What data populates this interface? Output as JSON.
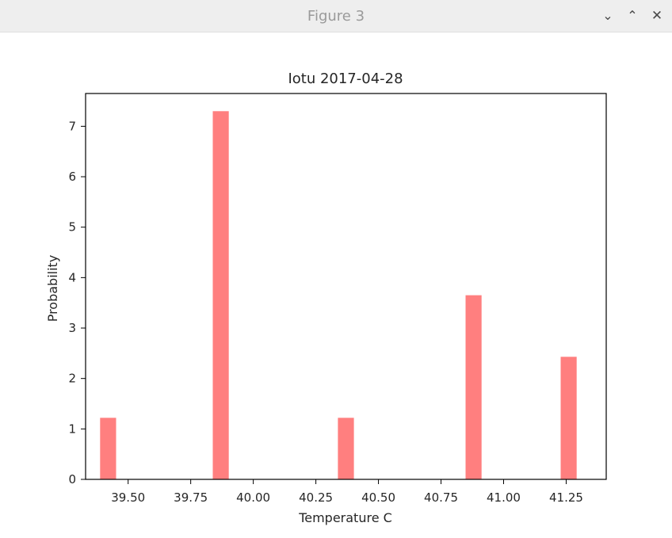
{
  "window": {
    "title": "Figure 3",
    "minimize_glyph": "⌄",
    "maximize_glyph": "⌃",
    "close_glyph": "✕"
  },
  "chart_data": {
    "type": "bar",
    "title": "Iotu 2017-04-28",
    "xlabel": "Temperature C",
    "ylabel": "Probability",
    "xlim": [
      39.33,
      41.41
    ],
    "ylim": [
      0,
      7.65
    ],
    "xticks": [
      39.5,
      39.75,
      40.0,
      40.25,
      40.5,
      40.75,
      41.0,
      41.25
    ],
    "xtick_labels": [
      "39.50",
      "39.75",
      "40.00",
      "40.25",
      "40.50",
      "40.75",
      "41.00",
      "41.25"
    ],
    "yticks": [
      0,
      1,
      2,
      3,
      4,
      5,
      6,
      7
    ],
    "ytick_labels": [
      "0",
      "1",
      "2",
      "3",
      "4",
      "5",
      "6",
      "7"
    ],
    "bar_width": 0.064,
    "bar_color": "#ff7f7f",
    "bars": [
      {
        "x": 39.42,
        "value": 1.22
      },
      {
        "x": 39.87,
        "value": 7.3
      },
      {
        "x": 40.37,
        "value": 1.22
      },
      {
        "x": 40.88,
        "value": 3.65
      },
      {
        "x": 41.26,
        "value": 2.43
      }
    ],
    "grid": false,
    "legend": "none"
  }
}
